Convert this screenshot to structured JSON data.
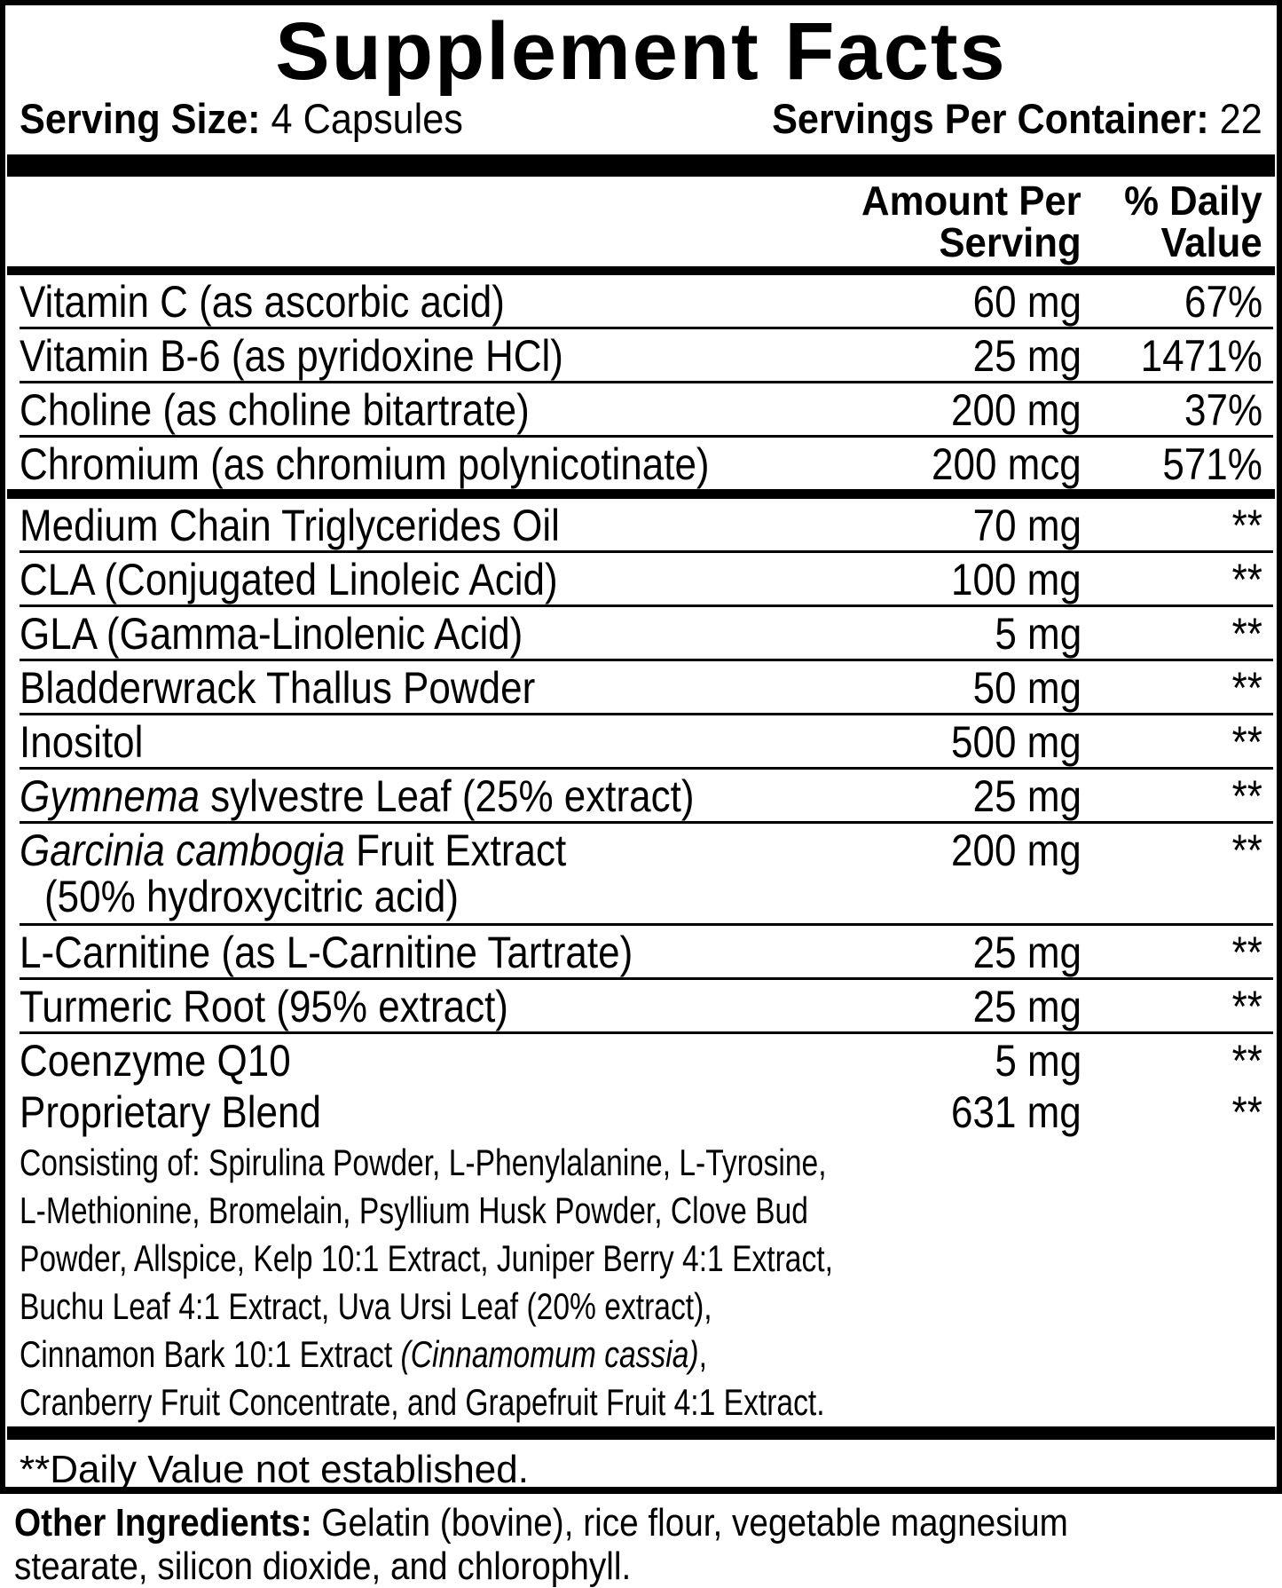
{
  "colors": {
    "text": "#000000",
    "background": "#ffffff"
  },
  "title": "Supplement Facts",
  "serving": {
    "size_label": "Serving Size:",
    "size_value": "4 Capsules",
    "per_container_label": "Servings Per Container:",
    "per_container_value": "22"
  },
  "header": {
    "amount_line1": "Amount Per",
    "amount_line2": "Serving",
    "dv_line1": "% Daily",
    "dv_line2": "Value"
  },
  "sections": [
    {
      "rows": [
        {
          "name": [
            {
              "t": "Vitamin C (as ascorbic acid)"
            }
          ],
          "amount": "60 mg",
          "dv": "67%"
        },
        {
          "name": [
            {
              "t": "Vitamin B-6 (as pyridoxine HCl)"
            }
          ],
          "amount": "25 mg",
          "dv": "1471%"
        },
        {
          "name": [
            {
              "t": "Choline (as choline bitartrate)"
            }
          ],
          "amount": "200 mg",
          "dv": "37%"
        },
        {
          "name": [
            {
              "t": "Chromium (as chromium polynicotinate)"
            }
          ],
          "amount": "200 mcg",
          "dv": "571%"
        }
      ]
    },
    {
      "rows": [
        {
          "name": [
            {
              "t": "Medium Chain Triglycerides Oil"
            }
          ],
          "amount": "70 mg",
          "dv": "**"
        },
        {
          "name": [
            {
              "t": "CLA (Conjugated Linoleic Acid)"
            }
          ],
          "amount": "100 mg",
          "dv": "**"
        },
        {
          "name": [
            {
              "t": "GLA (Gamma-Linolenic Acid)"
            }
          ],
          "amount": "5 mg",
          "dv": "**"
        },
        {
          "name": [
            {
              "t": "Bladderwrack Thallus Powder"
            }
          ],
          "amount": "50 mg",
          "dv": "**"
        },
        {
          "name": [
            {
              "t": "Inositol"
            }
          ],
          "amount": "500 mg",
          "dv": "**"
        },
        {
          "name": [
            {
              "t": "Gymnema",
              "i": true
            },
            {
              "t": " sylvestre Leaf (25% extract)"
            }
          ],
          "amount": "25 mg",
          "dv": "**"
        },
        {
          "name": [
            {
              "t": "Garcinia cambogia",
              "i": true
            },
            {
              "t": " Fruit Extract"
            }
          ],
          "sub": "(50% hydroxycitric acid)",
          "amount": "200 mg",
          "dv": "**"
        },
        {
          "name": [
            {
              "t": "L-Carnitine (as L-Carnitine Tartrate)"
            }
          ],
          "amount": "25 mg",
          "dv": "**"
        },
        {
          "name": [
            {
              "t": "Turmeric Root (95% extract)"
            }
          ],
          "amount": "25 mg",
          "dv": "**"
        },
        {
          "name": [
            {
              "t": "Coenzyme Q10"
            }
          ],
          "amount": "5 mg",
          "dv": "**",
          "no_border": true,
          "next_name": null
        },
        {
          "name": [
            {
              "t": "Proprietary Blend"
            }
          ],
          "amount": "631 mg",
          "dv": "**",
          "no_border": true,
          "description": [
            [
              {
                "t": "Consisting of: Spirulina Powder, L-Phenylalanine, L-Tyrosine,"
              }
            ],
            [
              {
                "t": "L-Methionine, Bromelain, Psyllium Husk Powder, Clove Bud"
              }
            ],
            [
              {
                "t": "Powder, Allspice, Kelp 10:1 Extract, Juniper Berry 4:1 Extract,"
              }
            ],
            [
              {
                "t": "Buchu Leaf 4:1 Extract, Uva Ursi Leaf (20% extract),"
              }
            ],
            [
              {
                "t": "Cinnamon Bark 10:1 Extract "
              },
              {
                "t": "(Cinnamomum cassia)",
                "i": true
              },
              {
                "t": ","
              }
            ],
            [
              {
                "t": "Cranberry Fruit Concentrate, and Grapefruit Fruit 4:1 Extract."
              }
            ]
          ]
        }
      ]
    }
  ],
  "footnote": "**Daily Value not established.",
  "other_ingredients": {
    "label": "Other Ingredients:",
    "line1_rest": " Gelatin (bovine), rice flour, vegetable magnesium",
    "line2": "stearate, silicon dioxide, and chlorophyll."
  }
}
